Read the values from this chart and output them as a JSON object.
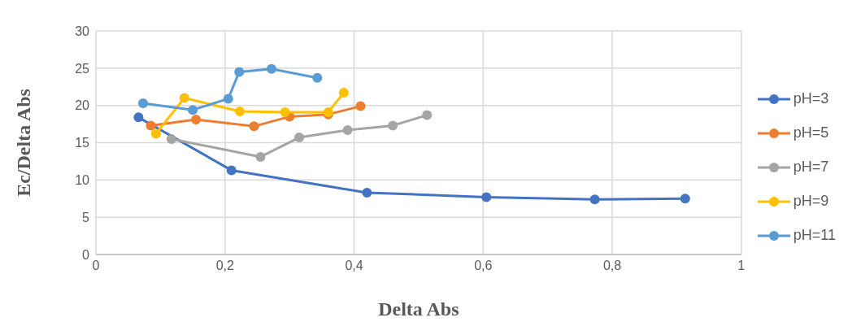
{
  "chart_data": {
    "type": "line",
    "xlabel": "Delta Abs",
    "ylabel": "Ec/Delta Abs",
    "xlim": [
      0,
      1
    ],
    "xticks": [
      0,
      {
        "value": 0.2,
        "label": "0,2"
      },
      {
        "value": 0.4,
        "label": "0,4"
      },
      {
        "value": 0.6,
        "label": "0,6"
      },
      {
        "value": 0.8,
        "label": "0,8"
      },
      1
    ],
    "ylim": [
      0,
      30
    ],
    "yticks": [
      0,
      5,
      10,
      15,
      20,
      25,
      30
    ],
    "grid": true,
    "legend": "right",
    "marker": "circle",
    "line_style": "solid",
    "series": [
      {
        "name": "pH=3",
        "color": "#4472c4",
        "x": [
          0.066,
          0.21,
          0.42,
          0.605,
          0.773,
          0.913
        ],
        "values": [
          18.4,
          11.3,
          8.3,
          7.7,
          7.4,
          7.5
        ]
      },
      {
        "name": "pH=5",
        "color": "#ed7d31",
        "x": [
          0.085,
          0.155,
          0.245,
          0.3,
          0.36,
          0.41
        ],
        "values": [
          17.3,
          18.1,
          17.2,
          18.5,
          18.8,
          19.9
        ]
      },
      {
        "name": "pH=7",
        "color": "#a5a5a5",
        "x": [
          0.117,
          0.255,
          0.315,
          0.39,
          0.46,
          0.513
        ],
        "values": [
          15.5,
          13.1,
          15.7,
          16.7,
          17.3,
          18.7
        ]
      },
      {
        "name": "pH=9",
        "color": "#ffc000",
        "x": [
          0.093,
          0.137,
          0.223,
          0.293,
          0.36,
          0.384
        ],
        "values": [
          16.2,
          21.0,
          19.2,
          19.1,
          19.1,
          21.7
        ]
      },
      {
        "name": "pH=11",
        "color": "#5b9bd5",
        "x": [
          0.073,
          0.15,
          0.205,
          0.222,
          0.272,
          0.343
        ],
        "values": [
          20.3,
          19.4,
          20.9,
          24.5,
          24.9,
          23.7
        ]
      }
    ]
  }
}
